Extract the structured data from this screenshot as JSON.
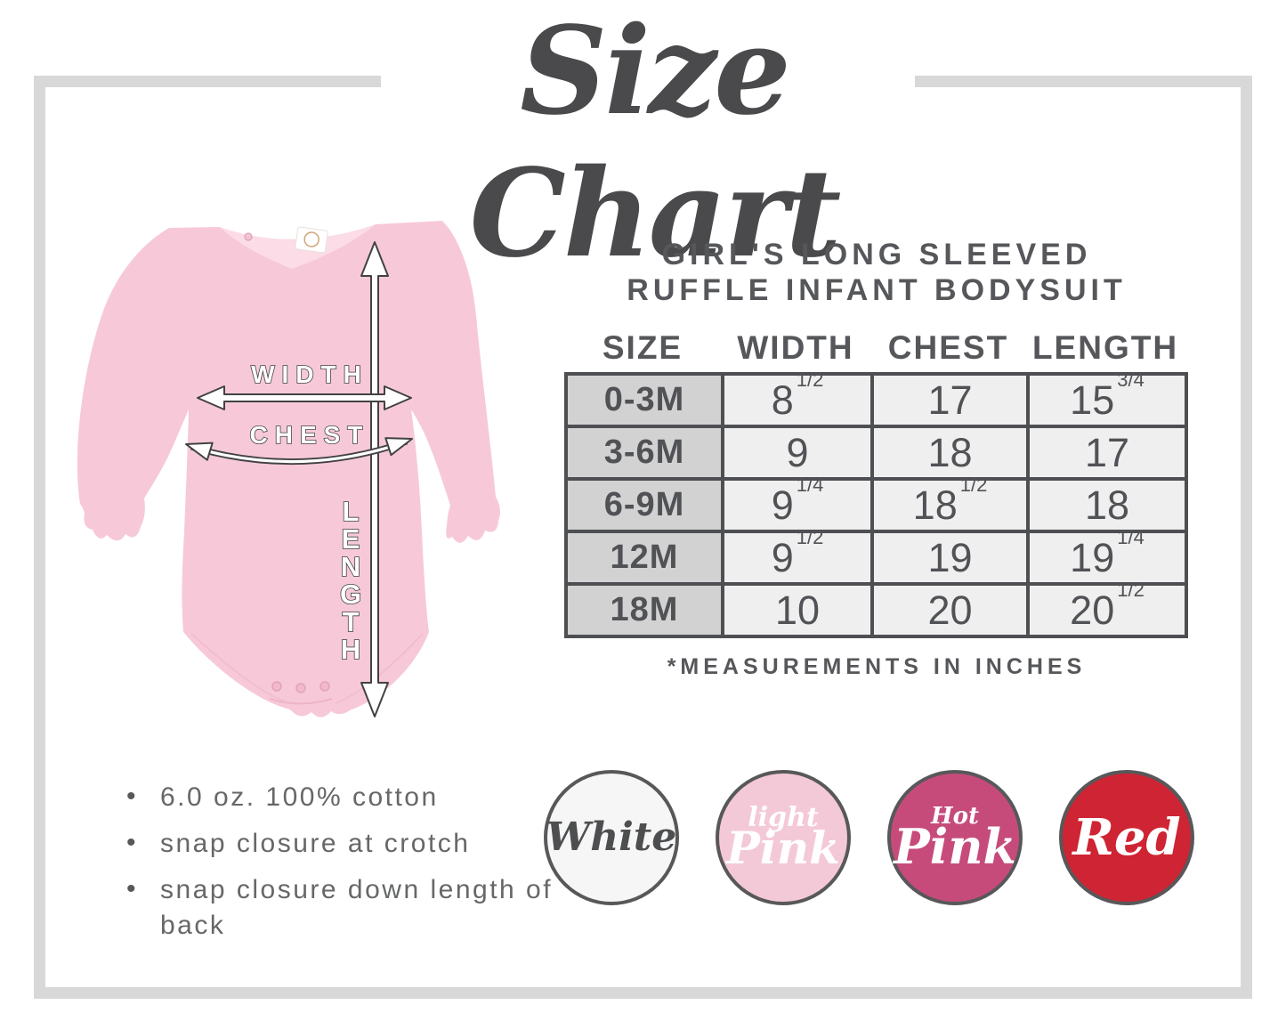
{
  "page_title": "Size Chart",
  "product": {
    "title_line1": "GIRL'S LONG SLEEVED",
    "title_line2": "RUFFLE INFANT BODYSUIT"
  },
  "size_table": {
    "columns": [
      "SIZE",
      "WIDTH",
      "CHEST",
      "LENGTH"
    ],
    "rows": [
      {
        "size": "0-3M",
        "width": {
          "whole": "8",
          "frac": "1/2"
        },
        "chest": {
          "whole": "17",
          "frac": ""
        },
        "length": {
          "whole": "15",
          "frac": "3/4"
        }
      },
      {
        "size": "3-6M",
        "width": {
          "whole": "9",
          "frac": ""
        },
        "chest": {
          "whole": "18",
          "frac": ""
        },
        "length": {
          "whole": "17",
          "frac": ""
        }
      },
      {
        "size": "6-9M",
        "width": {
          "whole": "9",
          "frac": "1/4"
        },
        "chest": {
          "whole": "18",
          "frac": "1/2"
        },
        "length": {
          "whole": "18",
          "frac": ""
        }
      },
      {
        "size": "12M",
        "width": {
          "whole": "9",
          "frac": "1/2"
        },
        "chest": {
          "whole": "19",
          "frac": ""
        },
        "length": {
          "whole": "19",
          "frac": "1/4"
        }
      },
      {
        "size": "18M",
        "width": {
          "whole": "10",
          "frac": ""
        },
        "chest": {
          "whole": "20",
          "frac": ""
        },
        "length": {
          "whole": "20",
          "frac": "1/2"
        }
      }
    ],
    "footnote": "*MEASUREMENTS IN INCHES"
  },
  "diagram": {
    "width_label": "WIDTH",
    "chest_label": "CHEST",
    "length_label": "LENGTH",
    "garment_color": "#f7c9d8"
  },
  "features": [
    "6.0 oz. 100% cotton",
    "snap closure at crotch",
    "snap closure down length of back"
  ],
  "swatches": [
    {
      "name": "White",
      "lines": [
        "White"
      ],
      "fill": "#f6f6f6",
      "text_color": "#4d4e50"
    },
    {
      "name": "light Pink",
      "lines": [
        "light",
        "Pink"
      ],
      "fill": "#f4c9d7",
      "text_color": "#ffffff"
    },
    {
      "name": "Hot Pink",
      "lines": [
        "Hot",
        "Pink"
      ],
      "fill": "#c64b7b",
      "text_color": "#ffffff"
    },
    {
      "name": "Red",
      "lines": [
        "Red"
      ],
      "fill": "#ce2433",
      "text_color": "#ffffff"
    }
  ],
  "ui_colors": {
    "frame_gray": "#d8d8d8",
    "text_dark": "#56575a",
    "text_gray": "#666769",
    "table_border": "#4e4f52",
    "size_column_bg": "#d2d2d2",
    "value_cell_bg": "#efefef"
  }
}
